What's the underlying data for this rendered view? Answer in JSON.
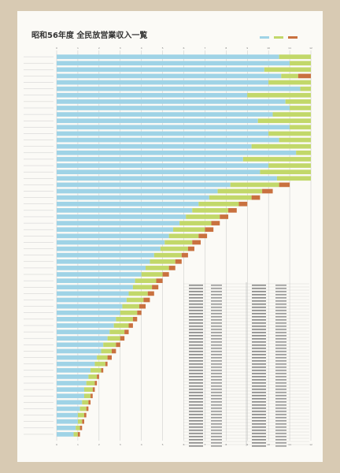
{
  "chart_data": {
    "type": "stacked-barh",
    "title": "昭和56年度 全民放営業収入一覧",
    "categories": [
      null,
      null,
      null,
      null,
      null,
      null,
      null,
      null,
      null,
      null,
      null,
      null,
      null,
      null,
      null,
      null,
      null,
      null,
      null,
      null,
      null,
      null,
      null,
      null,
      null,
      null,
      null,
      null,
      null,
      null,
      null,
      null,
      null,
      null,
      null,
      null,
      null,
      null,
      null,
      null,
      null,
      null,
      null,
      null,
      null,
      null,
      null,
      null,
      null,
      null,
      null,
      null,
      null,
      null,
      null,
      null,
      null,
      null,
      null,
      null
    ],
    "series": [
      {
        "color": "#9fd3e6",
        "values": [
          10.5,
          11,
          9.8,
          10.6,
          10,
          11.5,
          9,
          10.8,
          11,
          10.2,
          9.5,
          11,
          10,
          10.5,
          9.2,
          11.3,
          8.8,
          10,
          9.6,
          10.4,
          8.2,
          7.6,
          7.2,
          6.7,
          6.4,
          6.1,
          5.8,
          5.5,
          5.3,
          5.1,
          4.9,
          4.6,
          4.4,
          4.2,
          4,
          3.7,
          3.6,
          3.4,
          3.3,
          3.1,
          3,
          2.8,
          2.7,
          2.5,
          2.4,
          2.2,
          2.1,
          1.9,
          1.8,
          1.6,
          1.5,
          1.4,
          1.3,
          1.3,
          1.2,
          1.1,
          1,
          1,
          0.9,
          0.8
        ]
      },
      {
        "color": "#c2d86a",
        "values": [
          1.5,
          1,
          2.2,
          0.8,
          2,
          0.5,
          3,
          1.2,
          1,
          1.8,
          2.5,
          1,
          2,
          1.5,
          2.8,
          0.7,
          3.2,
          2,
          2.4,
          1.6,
          2.3,
          2.1,
          2,
          1.9,
          1.7,
          1.6,
          1.5,
          1.5,
          1.4,
          1.3,
          1.3,
          1.3,
          1.2,
          1.1,
          1,
          1,
          0.9,
          0.9,
          0.8,
          0.8,
          0.8,
          0.8,
          0.7,
          0.7,
          0.6,
          0.6,
          0.5,
          0.5,
          0.5,
          0.5,
          0.4,
          0.4,
          0.4,
          0.3,
          0.3,
          0.3,
          0.3,
          0.2,
          0.2,
          0.2
        ]
      },
      {
        "color": "#c9713f",
        "values": [
          0,
          0,
          0,
          0.6,
          0,
          0,
          0,
          0,
          0,
          0,
          0,
          0,
          0,
          0,
          0,
          0,
          0,
          0,
          0,
          0,
          0.5,
          0.5,
          0.4,
          0.4,
          0.4,
          0.4,
          0.4,
          0.4,
          0.4,
          0.4,
          0.3,
          0.3,
          0.3,
          0.3,
          0.3,
          0.3,
          0.3,
          0.3,
          0.3,
          0.3,
          0.2,
          0.2,
          0.2,
          0.2,
          0.2,
          0.2,
          0.2,
          0.2,
          0.1,
          0.1,
          0.1,
          0.1,
          0.1,
          0.1,
          0.1,
          0.1,
          0.1,
          0.1,
          0.1,
          0.1
        ]
      }
    ],
    "xlim": [
      0,
      12
    ],
    "xticks": [
      0,
      1,
      2,
      3,
      4,
      5,
      6,
      7,
      8,
      9,
      10,
      11,
      12
    ],
    "grid": true
  }
}
